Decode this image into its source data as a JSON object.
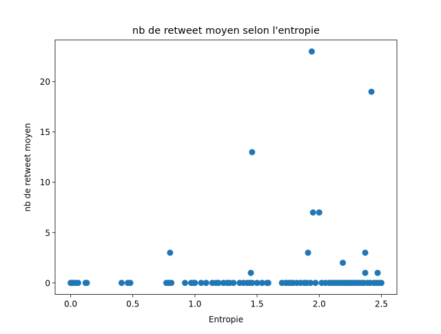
{
  "chart_data": {
    "type": "scatter",
    "title": "nb de retweet moyen selon l'entropie",
    "xlabel": "Entropie",
    "ylabel": "nb de retweet moyen",
    "xlim": [
      -0.125,
      2.625
    ],
    "ylim": [
      -1.15,
      24.15
    ],
    "xticks": [
      {
        "value": 0.0,
        "label": "0.0"
      },
      {
        "value": 0.5,
        "label": "0.5"
      },
      {
        "value": 1.0,
        "label": "1.0"
      },
      {
        "value": 1.5,
        "label": "1.5"
      },
      {
        "value": 2.0,
        "label": "2.0"
      },
      {
        "value": 2.5,
        "label": "2.5"
      }
    ],
    "yticks": [
      {
        "value": 0,
        "label": "0"
      },
      {
        "value": 5,
        "label": "5"
      },
      {
        "value": 10,
        "label": "10"
      },
      {
        "value": 15,
        "label": "15"
      },
      {
        "value": 20,
        "label": "20"
      }
    ],
    "grid": false,
    "marker_color": "#1f77b4",
    "points": [
      {
        "x": 0.0,
        "y": 0
      },
      {
        "x": 0.01,
        "y": 0
      },
      {
        "x": 0.02,
        "y": 0
      },
      {
        "x": 0.04,
        "y": 0
      },
      {
        "x": 0.06,
        "y": 0
      },
      {
        "x": 0.12,
        "y": 0
      },
      {
        "x": 0.13,
        "y": 0
      },
      {
        "x": 0.41,
        "y": 0
      },
      {
        "x": 0.46,
        "y": 0
      },
      {
        "x": 0.48,
        "y": 0
      },
      {
        "x": 0.77,
        "y": 0
      },
      {
        "x": 0.79,
        "y": 0
      },
      {
        "x": 0.81,
        "y": 0
      },
      {
        "x": 0.8,
        "y": 3
      },
      {
        "x": 0.92,
        "y": 0
      },
      {
        "x": 0.97,
        "y": 0
      },
      {
        "x": 0.99,
        "y": 0
      },
      {
        "x": 1.0,
        "y": 0
      },
      {
        "x": 1.05,
        "y": 0
      },
      {
        "x": 1.09,
        "y": 0
      },
      {
        "x": 1.14,
        "y": 0
      },
      {
        "x": 1.17,
        "y": 0
      },
      {
        "x": 1.19,
        "y": 0
      },
      {
        "x": 1.23,
        "y": 0
      },
      {
        "x": 1.26,
        "y": 0
      },
      {
        "x": 1.28,
        "y": 0
      },
      {
        "x": 1.31,
        "y": 0
      },
      {
        "x": 1.36,
        "y": 0
      },
      {
        "x": 1.39,
        "y": 0
      },
      {
        "x": 1.42,
        "y": 0
      },
      {
        "x": 1.44,
        "y": 0
      },
      {
        "x": 1.46,
        "y": 0
      },
      {
        "x": 1.45,
        "y": 1
      },
      {
        "x": 1.46,
        "y": 13
      },
      {
        "x": 1.5,
        "y": 0
      },
      {
        "x": 1.54,
        "y": 0
      },
      {
        "x": 1.58,
        "y": 0
      },
      {
        "x": 1.59,
        "y": 0
      },
      {
        "x": 1.7,
        "y": 0
      },
      {
        "x": 1.73,
        "y": 0
      },
      {
        "x": 1.75,
        "y": 0
      },
      {
        "x": 1.77,
        "y": 0
      },
      {
        "x": 1.79,
        "y": 0
      },
      {
        "x": 1.82,
        "y": 0
      },
      {
        "x": 1.85,
        "y": 0
      },
      {
        "x": 1.88,
        "y": 0
      },
      {
        "x": 1.9,
        "y": 0
      },
      {
        "x": 1.91,
        "y": 3
      },
      {
        "x": 1.93,
        "y": 0
      },
      {
        "x": 1.94,
        "y": 23
      },
      {
        "x": 1.95,
        "y": 7
      },
      {
        "x": 1.97,
        "y": 0
      },
      {
        "x": 2.0,
        "y": 7
      },
      {
        "x": 2.02,
        "y": 0
      },
      {
        "x": 2.05,
        "y": 0
      },
      {
        "x": 2.08,
        "y": 0
      },
      {
        "x": 2.1,
        "y": 0
      },
      {
        "x": 2.12,
        "y": 0
      },
      {
        "x": 2.14,
        "y": 0
      },
      {
        "x": 2.16,
        "y": 0
      },
      {
        "x": 2.18,
        "y": 0
      },
      {
        "x": 2.19,
        "y": 2
      },
      {
        "x": 2.2,
        "y": 0
      },
      {
        "x": 2.22,
        "y": 0
      },
      {
        "x": 2.24,
        "y": 0
      },
      {
        "x": 2.26,
        "y": 0
      },
      {
        "x": 2.28,
        "y": 0
      },
      {
        "x": 2.3,
        "y": 0
      },
      {
        "x": 2.32,
        "y": 0
      },
      {
        "x": 2.34,
        "y": 0
      },
      {
        "x": 2.36,
        "y": 0
      },
      {
        "x": 2.37,
        "y": 3
      },
      {
        "x": 2.37,
        "y": 1
      },
      {
        "x": 2.39,
        "y": 0
      },
      {
        "x": 2.41,
        "y": 0
      },
      {
        "x": 2.42,
        "y": 19
      },
      {
        "x": 2.44,
        "y": 0
      },
      {
        "x": 2.46,
        "y": 0
      },
      {
        "x": 2.47,
        "y": 1
      },
      {
        "x": 2.48,
        "y": 0
      },
      {
        "x": 2.5,
        "y": 0
      }
    ]
  }
}
